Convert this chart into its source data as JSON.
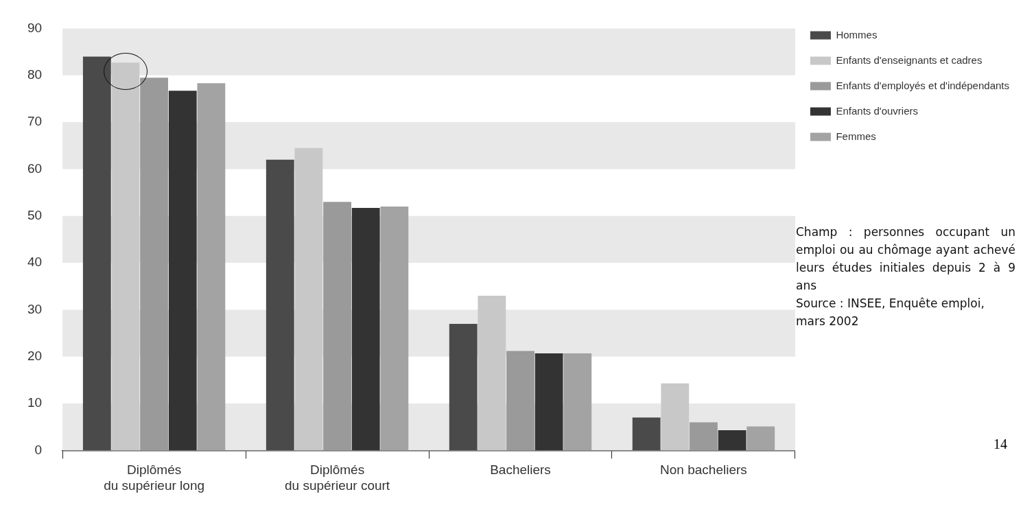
{
  "chart_data": {
    "type": "bar",
    "categories": [
      "Diplômés\ndu supérieur long",
      "Diplômés\ndu supérieur court",
      "Bacheliers",
      "Non bacheliers"
    ],
    "series": [
      {
        "name": "Hommes",
        "color": "#4a4a4a",
        "values": [
          84,
          62,
          27,
          7
        ]
      },
      {
        "name": "Enfants d'enseignants et cadres",
        "color": "#c8c8c8",
        "values": [
          82.7,
          64.5,
          33,
          14.3
        ]
      },
      {
        "name": "Enfants d'employés et d'indépendants",
        "color": "#9a9a9a",
        "values": [
          79.5,
          53,
          21.2,
          6
        ]
      },
      {
        "name": "Enfants d'ouvriers",
        "color": "#333333",
        "values": [
          76.7,
          51.7,
          20.7,
          4.3
        ]
      },
      {
        "name": "Femmes",
        "color": "#a3a3a3",
        "values": [
          78.3,
          52,
          20.7,
          5.1
        ]
      }
    ],
    "ylim": [
      0,
      90
    ],
    "yticks": [
      0,
      10,
      20,
      30,
      40,
      50,
      60,
      70,
      80,
      90
    ],
    "bands": [
      {
        "axis": "y",
        "from": 0,
        "to": 10,
        "color": "#e8e8e8"
      },
      {
        "axis": "y",
        "from": 20,
        "to": 30,
        "color": "#e8e8e8"
      },
      {
        "axis": "y",
        "from": 40,
        "to": 50,
        "color": "#e8e8e8"
      },
      {
        "axis": "y",
        "from": 60,
        "to": 70,
        "color": "#e8e8e8"
      },
      {
        "axis": "y",
        "from": 80,
        "to": 90,
        "color": "#e8e8e8"
      }
    ],
    "grid": false,
    "legend": "right",
    "annotations": [
      "Champ : personnes occupant un emploi ou au chômage ayant achevé leurs études initiales depuis 2 à 9 ans",
      "Source : INSEE, Enquête emploi, mars 2002",
      "14"
    ]
  }
}
